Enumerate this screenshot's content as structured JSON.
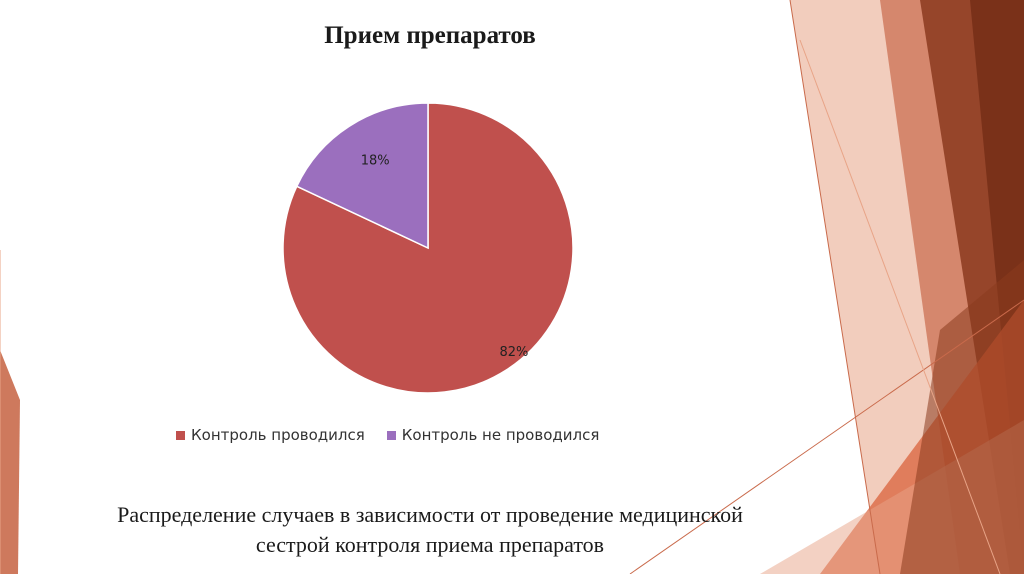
{
  "chart_data": {
    "type": "pie",
    "title": "Прием препаратов",
    "categories": [
      "Контроль проводился",
      "Контроль не проводился"
    ],
    "values": [
      82,
      18
    ],
    "labels": [
      "82%",
      "18%"
    ],
    "colors": [
      "#c0504d",
      "#9b6fbe"
    ],
    "legend_position": "bottom"
  },
  "caption": {
    "line1": "Распределение случаев в зависимости от проведение медицинской",
    "line2": "сестрой контроля приема препаратов"
  },
  "theme": {
    "accent_dark": "#8b3a1e",
    "accent_mid": "#c96a4b",
    "accent_light": "#e8a487"
  }
}
